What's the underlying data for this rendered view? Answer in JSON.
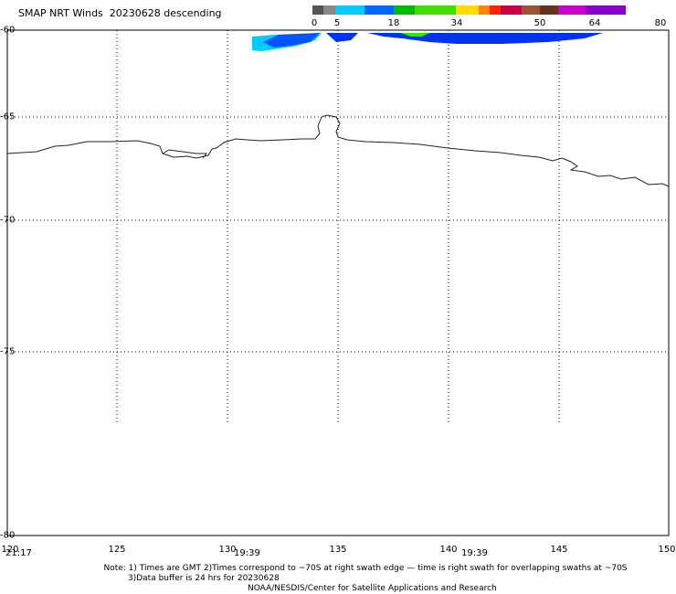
{
  "title": "SMAP NRT Winds  20230628 descending",
  "legend": {
    "ticks": [
      "0",
      "5",
      "18",
      "34",
      "50",
      "64",
      "80"
    ],
    "colors": [
      "#555555",
      "#888888",
      "#00ccff",
      "#0066ff",
      "#00bb00",
      "#44dd00",
      "#ffdd00",
      "#ff8800",
      "#ff2200",
      "#cc0044",
      "#995533",
      "#663322",
      "#cc00cc",
      "#8800cc"
    ]
  },
  "map": {
    "lat_labels": [
      "-60",
      "-65",
      "-70",
      "-75",
      "-80"
    ],
    "lon_labels": [
      "120",
      "125",
      "130",
      "135",
      "140",
      "145",
      "150"
    ],
    "times": [
      "21:17",
      "19:39",
      "19:39"
    ]
  },
  "notes": {
    "line1": "Note: 1) Times are GMT 2)Times correspond to ~70S at right swath edge — time is right swath for overlapping swaths at ~70S",
    "line2": "3)Data buffer is 24 hrs for 20230628",
    "line3": "NOAA/NESDIS/Center for Satellite Applications and Research"
  }
}
